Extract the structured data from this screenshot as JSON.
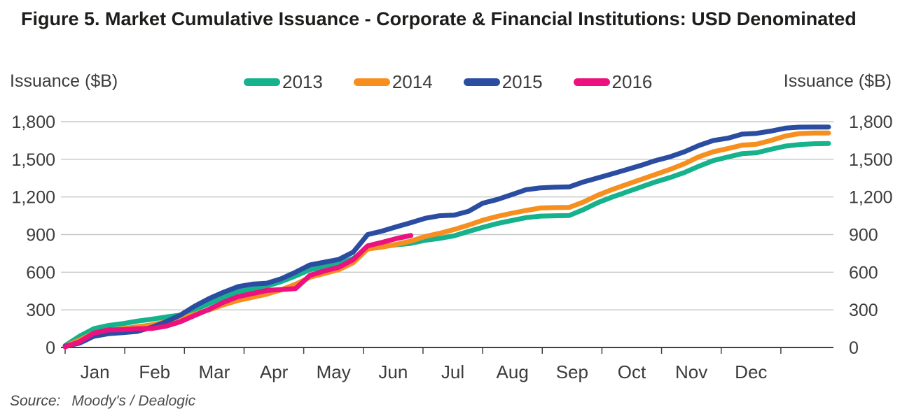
{
  "title": "Figure 5. Market Cumulative Issuance - Corporate & Financial Institutions: USD Denominated",
  "axis_caption_left": "Issuance ($B)",
  "axis_caption_right": "Issuance ($B)",
  "source": {
    "label": "Source:",
    "value": "Moody's / Dealogic"
  },
  "chart_data": {
    "type": "line",
    "title": "Figure 5. Market Cumulative Issuance - Corporate & Financial Institutions: USD Denominated",
    "xlabel": "",
    "ylabel": "Issuance ($B)",
    "x_unit": "week of year (cumulative issuance by week)",
    "month_labels": [
      "Jan",
      "Feb",
      "Mar",
      "Apr",
      "May",
      "Jun",
      "Jul",
      "Aug",
      "Sep",
      "Oct",
      "Nov",
      "Dec"
    ],
    "ylim": [
      0,
      1800
    ],
    "yticks": [
      0,
      300,
      600,
      900,
      1200,
      1500,
      1800
    ],
    "grid": "horizontal",
    "legend_position": "top-center",
    "weeks_per_year": 53,
    "series": [
      {
        "name": "2013",
        "color": "#15b28c",
        "values": [
          15,
          90,
          150,
          175,
          190,
          210,
          225,
          243,
          258,
          300,
          350,
          400,
          445,
          465,
          490,
          525,
          570,
          620,
          645,
          668,
          710,
          790,
          805,
          818,
          830,
          855,
          870,
          890,
          925,
          958,
          988,
          1012,
          1035,
          1047,
          1050,
          1052,
          1100,
          1155,
          1200,
          1240,
          1280,
          1320,
          1355,
          1395,
          1445,
          1490,
          1518,
          1545,
          1552,
          1580,
          1605,
          1618,
          1624,
          1626
        ]
      },
      {
        "name": "2014",
        "color": "#f78f1f",
        "values": [
          8,
          60,
          115,
          135,
          150,
          165,
          180,
          205,
          230,
          265,
          300,
          340,
          375,
          400,
          425,
          460,
          505,
          560,
          590,
          620,
          676,
          785,
          800,
          822,
          848,
          885,
          910,
          940,
          975,
          1015,
          1045,
          1070,
          1092,
          1112,
          1115,
          1117,
          1160,
          1215,
          1260,
          1300,
          1340,
          1380,
          1420,
          1465,
          1520,
          1560,
          1585,
          1613,
          1620,
          1650,
          1685,
          1705,
          1709,
          1710
        ]
      },
      {
        "name": "2015",
        "color": "#2a4da2",
        "values": [
          10,
          35,
          90,
          110,
          118,
          128,
          160,
          205,
          258,
          330,
          390,
          440,
          485,
          505,
          512,
          548,
          600,
          658,
          680,
          702,
          760,
          900,
          928,
          962,
          995,
          1030,
          1050,
          1055,
          1085,
          1150,
          1180,
          1218,
          1258,
          1272,
          1277,
          1280,
          1320,
          1352,
          1385,
          1418,
          1452,
          1490,
          1520,
          1560,
          1610,
          1650,
          1668,
          1700,
          1707,
          1725,
          1748,
          1756,
          1757,
          1757
        ]
      },
      {
        "name": "2016",
        "color": "#eb117f",
        "values": [
          5,
          45,
          115,
          140,
          142,
          150,
          151,
          170,
          205,
          255,
          305,
          360,
          405,
          430,
          455,
          462,
          470,
          575,
          610,
          640,
          700,
          810,
          838,
          868,
          893
        ]
      }
    ]
  },
  "style_colors": {
    "gridline": "#c7c7c7",
    "axis": "#404040",
    "tick_text": "#3c3c3b",
    "title_text": "#1d1d1b"
  }
}
